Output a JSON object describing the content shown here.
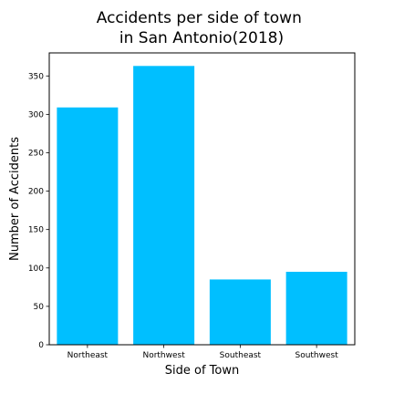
{
  "chart_data": {
    "type": "bar",
    "title": "Accidents per side of town\n in San Antonio(2018)",
    "xlabel": "Side of Town",
    "ylabel": "Number of Accidents",
    "categories": [
      "Northeast",
      "Northwest",
      "Southeast",
      "Southwest"
    ],
    "values": [
      309,
      363,
      85,
      95
    ],
    "ylim": [
      0,
      380
    ],
    "yticks": [
      0,
      50,
      100,
      150,
      200,
      250,
      300,
      350
    ],
    "bar_color": "#00bfff",
    "grid": false,
    "legend": "none"
  }
}
